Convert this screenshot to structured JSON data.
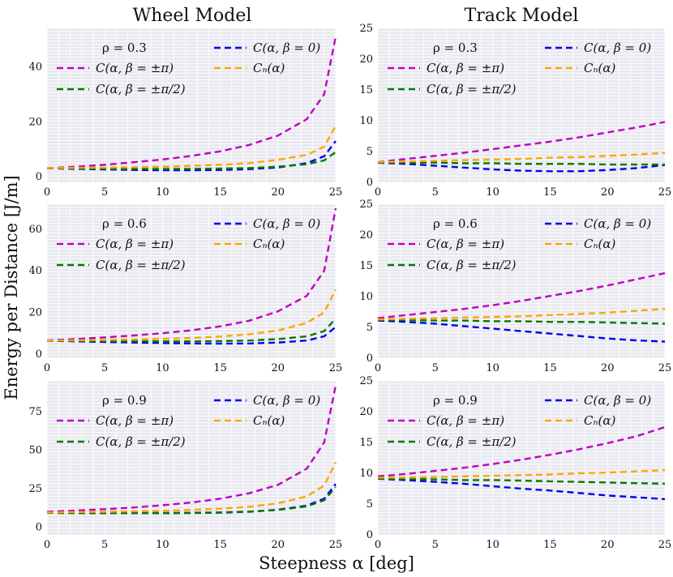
{
  "figure": {
    "titles": [
      "Wheel Model",
      "Track Model"
    ],
    "ylabel": "Energy per Distance [J/m]",
    "xlabel": "Steepness α [deg]"
  },
  "colors": {
    "beta_pi": "#c000c0",
    "beta_0": "#0000ee",
    "beta_half_pi": "#007a00",
    "cn": "#ffa500",
    "plot_bg": "#e8e8f0",
    "grid": "#ffffff"
  },
  "legend": {
    "beta_pi": "C(α, β = ±π)",
    "beta_0": "C(α, β = 0)",
    "beta_half_pi": "C(α, β = ±π/2)",
    "cn": "Cₙ(α)"
  },
  "chart_data": [
    {
      "id": "wheel-rho-0.3",
      "type": "line",
      "title": "Wheel Model",
      "rho_label": "ρ = 0.3",
      "xlim": [
        0,
        25
      ],
      "ylim": [
        -2,
        54
      ],
      "xticks": [
        "0",
        "5",
        "10",
        "15",
        "20",
        "25"
      ],
      "yticks": [
        "0",
        "20",
        "40"
      ],
      "x": [
        0,
        2.5,
        5,
        7.5,
        10,
        12.5,
        15,
        17.5,
        20,
        22.5,
        24,
        25
      ],
      "series": [
        {
          "key": "beta_pi",
          "values": [
            3.2,
            3.7,
            4.4,
            5.3,
            6.3,
            7.6,
            9.3,
            11.6,
            15,
            21,
            30,
            51
          ]
        },
        {
          "key": "beta_0",
          "values": [
            3.1,
            2.9,
            2.7,
            2.5,
            2.4,
            2.4,
            2.5,
            2.8,
            3.4,
            5,
            7.5,
            13
          ]
        },
        {
          "key": "beta_half_pi",
          "values": [
            3.1,
            3,
            2.9,
            2.9,
            2.9,
            2.9,
            3,
            3.2,
            3.7,
            4.6,
            6,
            9
          ]
        },
        {
          "key": "cn",
          "values": [
            3.2,
            3.3,
            3.4,
            3.5,
            3.7,
            4,
            4.4,
            5,
            6.2,
            8,
            11,
            18.5
          ]
        }
      ]
    },
    {
      "id": "track-rho-0.3",
      "type": "line",
      "title": "Track Model",
      "rho_label": "ρ = 0.3",
      "xlim": [
        0,
        25
      ],
      "ylim": [
        0,
        25
      ],
      "xticks": [
        "0",
        "5",
        "10",
        "15",
        "20",
        "25"
      ],
      "yticks": [
        "0",
        "5",
        "10",
        "15",
        "20",
        "25"
      ],
      "x": [
        0,
        2.5,
        5,
        7.5,
        10,
        12.5,
        15,
        17.5,
        20,
        22.5,
        25
      ],
      "series": [
        {
          "key": "beta_pi",
          "values": [
            3.3,
            3.8,
            4.3,
            4.8,
            5.4,
            6,
            6.6,
            7.3,
            8.1,
            8.9,
            9.8
          ]
        },
        {
          "key": "beta_0",
          "values": [
            3.2,
            3,
            2.7,
            2.4,
            2.1,
            1.9,
            1.8,
            1.8,
            2,
            2.3,
            2.8
          ]
        },
        {
          "key": "beta_half_pi",
          "values": [
            3.2,
            3.2,
            3.2,
            3.1,
            3.1,
            3,
            3,
            3,
            2.9,
            2.9,
            2.9
          ]
        },
        {
          "key": "cn",
          "values": [
            3.3,
            3.4,
            3.5,
            3.6,
            3.7,
            3.8,
            4,
            4.1,
            4.3,
            4.5,
            4.8
          ]
        }
      ]
    },
    {
      "id": "wheel-rho-0.6",
      "type": "line",
      "title": "Wheel Model",
      "rho_label": "ρ = 0.6",
      "xlim": [
        0,
        25
      ],
      "ylim": [
        -2,
        72
      ],
      "xticks": [
        "0",
        "5",
        "10",
        "15",
        "20",
        "25"
      ],
      "yticks": [
        "0",
        "20",
        "40",
        "60"
      ],
      "x": [
        0,
        2.5,
        5,
        7.5,
        10,
        12.5,
        15,
        17.5,
        20,
        22.5,
        24,
        25
      ],
      "series": [
        {
          "key": "beta_pi",
          "values": [
            6.6,
            7.2,
            8,
            8.9,
            10,
            11.4,
            13.3,
            16,
            20.5,
            28,
            40,
            70
          ]
        },
        {
          "key": "beta_0",
          "values": [
            6.4,
            6.1,
            5.8,
            5.5,
            5.3,
            5.1,
            5,
            5.1,
            5.5,
            6.5,
            8.5,
            13
          ]
        },
        {
          "key": "beta_half_pi",
          "values": [
            6.4,
            6.3,
            6.2,
            6.1,
            6.1,
            6.1,
            6.2,
            6.5,
            7.2,
            8.5,
            11,
            17
          ]
        },
        {
          "key": "cn",
          "values": [
            6.5,
            6.6,
            6.8,
            7,
            7.3,
            7.7,
            8.4,
            9.5,
            11.3,
            15,
            20,
            31
          ]
        }
      ]
    },
    {
      "id": "track-rho-0.6",
      "type": "line",
      "title": "Track Model",
      "rho_label": "ρ = 0.6",
      "xlim": [
        0,
        25
      ],
      "ylim": [
        0,
        25
      ],
      "xticks": [
        "0",
        "5",
        "10",
        "15",
        "20",
        "25"
      ],
      "yticks": [
        "0",
        "5",
        "10",
        "15",
        "20",
        "25"
      ],
      "x": [
        0,
        2.5,
        5,
        7.5,
        10,
        12.5,
        15,
        17.5,
        20,
        22.5,
        25
      ],
      "series": [
        {
          "key": "beta_pi",
          "values": [
            6.5,
            7,
            7.5,
            8,
            8.6,
            9.3,
            10.1,
            10.9,
            11.8,
            12.8,
            13.8
          ]
        },
        {
          "key": "beta_0",
          "values": [
            6.1,
            5.9,
            5.6,
            5.2,
            4.8,
            4.4,
            4,
            3.6,
            3.2,
            2.9,
            2.7
          ]
        },
        {
          "key": "beta_half_pi",
          "values": [
            6.2,
            6.2,
            6.1,
            6.1,
            6,
            6,
            5.9,
            5.9,
            5.8,
            5.7,
            5.6
          ]
        },
        {
          "key": "cn",
          "values": [
            6.3,
            6.4,
            6.5,
            6.6,
            6.7,
            6.8,
            7,
            7.2,
            7.4,
            7.7,
            8
          ]
        }
      ]
    },
    {
      "id": "wheel-rho-0.9",
      "type": "line",
      "title": "Wheel Model",
      "rho_label": "ρ = 0.9",
      "xlim": [
        0,
        25
      ],
      "ylim": [
        -5,
        95
      ],
      "xticks": [
        "0",
        "5",
        "10",
        "15",
        "20",
        "25"
      ],
      "yticks": [
        "0",
        "25",
        "50",
        "75"
      ],
      "x": [
        0,
        2.5,
        5,
        7.5,
        10,
        12.5,
        15,
        17.5,
        20,
        22.5,
        24,
        25
      ],
      "series": [
        {
          "key": "beta_pi",
          "values": [
            10,
            10.8,
            11.7,
            12.8,
            14.2,
            16,
            18.5,
            22,
            27.5,
            38,
            55,
            92
          ]
        },
        {
          "key": "beta_0",
          "values": [
            9.3,
            9.2,
            9.1,
            9.1,
            9.1,
            9.2,
            9.4,
            10,
            11.3,
            14,
            18.5,
            28
          ]
        },
        {
          "key": "beta_half_pi",
          "values": [
            9.3,
            9.2,
            9.2,
            9.2,
            9.2,
            9.3,
            9.6,
            10.1,
            11.2,
            13.5,
            17.5,
            26
          ]
        },
        {
          "key": "cn",
          "values": [
            9.6,
            9.8,
            10,
            10.3,
            10.7,
            11.2,
            12,
            13.2,
            15.5,
            20,
            27,
            42
          ]
        }
      ]
    },
    {
      "id": "track-rho-0.9",
      "type": "line",
      "title": "Track Model",
      "rho_label": "ρ = 0.9",
      "xlim": [
        0,
        25
      ],
      "ylim": [
        0,
        25
      ],
      "xticks": [
        "0",
        "5",
        "10",
        "15",
        "20",
        "25"
      ],
      "yticks": [
        "0",
        "5",
        "10",
        "15",
        "20",
        "25"
      ],
      "x": [
        0,
        2.5,
        5,
        7.5,
        10,
        12.5,
        15,
        17.5,
        20,
        22.5,
        25
      ],
      "series": [
        {
          "key": "beta_pi",
          "values": [
            9.5,
            9.9,
            10.4,
            10.9,
            11.5,
            12.2,
            13,
            13.9,
            14.9,
            16,
            17.5
          ]
        },
        {
          "key": "beta_0",
          "values": [
            9.1,
            8.9,
            8.6,
            8.3,
            7.9,
            7.5,
            7.2,
            6.8,
            6.4,
            6.1,
            5.8
          ]
        },
        {
          "key": "beta_half_pi",
          "values": [
            9.1,
            9.1,
            9,
            8.9,
            8.9,
            8.8,
            8.7,
            8.6,
            8.5,
            8.4,
            8.3
          ]
        },
        {
          "key": "cn",
          "values": [
            9.3,
            9.3,
            9.4,
            9.5,
            9.6,
            9.7,
            9.8,
            10,
            10.1,
            10.3,
            10.5
          ]
        }
      ]
    }
  ]
}
